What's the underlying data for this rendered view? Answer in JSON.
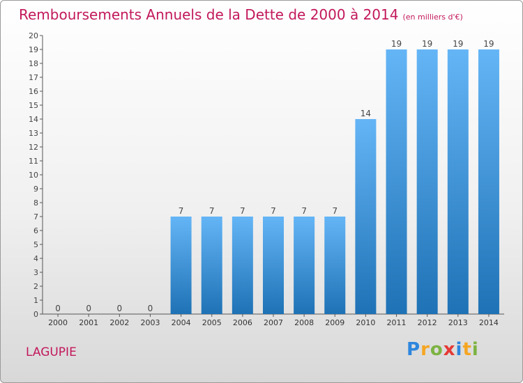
{
  "title": "Remboursements Annuels de la Dette de 2000 à 2014",
  "unit": "(en milliers d'€)",
  "commune": "LAGUPIE",
  "logo": {
    "letters": [
      "P",
      "r",
      "o",
      "x",
      "i",
      "t",
      "i"
    ],
    "colors": [
      "#2e86de",
      "#f5a623",
      "#7cb342",
      "#e53935",
      "#2e86de",
      "#f5a623",
      "#7cb342"
    ]
  },
  "colors": {
    "bar_light": "#64b5f6",
    "bar_dark": "#1e72b5",
    "title": "#c2185b"
  },
  "chart_data": {
    "type": "bar",
    "title": "Remboursements Annuels de la Dette de 2000 à 2014",
    "categories": [
      "2000",
      "2001",
      "2002",
      "2003",
      "2004",
      "2005",
      "2006",
      "2007",
      "2008",
      "2009",
      "2010",
      "2011",
      "2012",
      "2013",
      "2014"
    ],
    "values": [
      0,
      0,
      0,
      0,
      7,
      7,
      7,
      7,
      7,
      7,
      14,
      19,
      19,
      19,
      19
    ],
    "ylim": [
      0,
      20
    ],
    "yticks": [
      0,
      1,
      2,
      3,
      4,
      5,
      6,
      7,
      8,
      9,
      10,
      11,
      12,
      13,
      14,
      15,
      16,
      17,
      18,
      19,
      20
    ],
    "grid": false,
    "data_labels": true
  }
}
